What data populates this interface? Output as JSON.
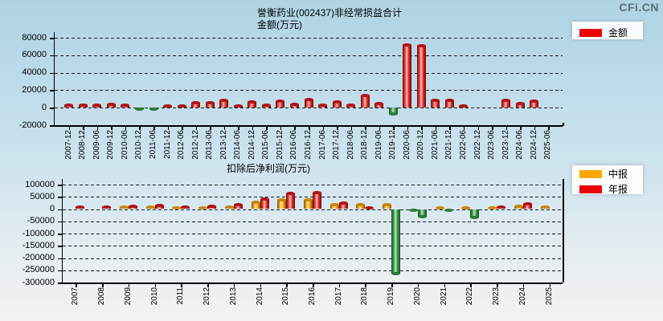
{
  "watermark": "CFi.CN",
  "chart_data": [
    {
      "type": "bar",
      "title": "誉衡药业(002437)非经常损益合计 金额(万元)",
      "title_line1": "誉衡药业(002437)非经常损益合计",
      "title_line2": "金额(万元)",
      "legend": [
        {
          "label": "金额",
          "color": "#ee0000"
        }
      ],
      "legend_position": "top-right",
      "grid": "horizontal-dashed",
      "ylim": [
        -20000,
        80000
      ],
      "yticks": [
        80000,
        60000,
        40000,
        20000,
        0,
        -20000
      ],
      "positive_color": "#dd2020",
      "negative_color": "#32913f",
      "categories": [
        "2007-12",
        "2008-12",
        "2009-06",
        "2009-12",
        "2010-06",
        "2010-12",
        "2011-06",
        "2011-12",
        "2012-06",
        "2012-12",
        "2013-06",
        "2013-12",
        "2014-06",
        "2014-12",
        "2015-06",
        "2015-12",
        "2016-06",
        "2016-12",
        "2017-06",
        "2017-12",
        "2018-06",
        "2018-12",
        "2019-06",
        "2019-12",
        "2020-06",
        "2020-12",
        "2021-06",
        "2021-12",
        "2022-06",
        "2022-12",
        "2023-06",
        "2023-12",
        "2024-06",
        "2024-12",
        "2025-06"
      ],
      "values": [
        2800,
        2800,
        2800,
        3400,
        2800,
        -1500,
        -1500,
        1900,
        2200,
        5300,
        5300,
        8100,
        2200,
        6800,
        2800,
        7400,
        4300,
        9000,
        3200,
        7000,
        2900,
        13800,
        4500,
        -7500,
        72000,
        70500,
        8500,
        8000,
        2000,
        null,
        null,
        8800,
        5000,
        7500,
        null
      ]
    },
    {
      "type": "bar",
      "title": "扣除后净利润(万元)",
      "legend_position": "right",
      "grid": "horizontal-dashed",
      "ylim": [
        -300000,
        100000
      ],
      "yticks": [
        100000,
        50000,
        0,
        -50000,
        -100000,
        -150000,
        -200000,
        -250000,
        -300000
      ],
      "negative_color": "#32913f",
      "categories": [
        "2007",
        "2008",
        "2009",
        "2010",
        "2011",
        "2012",
        "2013",
        "2014",
        "2015",
        "2016",
        "2017",
        "2018",
        "2019",
        "2020",
        "2021",
        "2022",
        "2023",
        "2024",
        "2025"
      ],
      "series": [
        {
          "name": "中报",
          "color": "#ffa500",
          "values": [
            null,
            null,
            7500,
            7500,
            6500,
            6500,
            9000,
            28000,
            36500,
            39000,
            19000,
            19000,
            19000,
            -1500,
            4000,
            5000,
            5000,
            12000,
            9000
          ]
        },
        {
          "name": "年报",
          "color": "#ee0000",
          "values": [
            8000,
            9000,
            11000,
            15500,
            9000,
            11000,
            16500,
            42000,
            63000,
            66000,
            25500,
            5500,
            -265000,
            -30000,
            -3000,
            -33000,
            9000,
            21000,
            null
          ]
        }
      ]
    }
  ]
}
